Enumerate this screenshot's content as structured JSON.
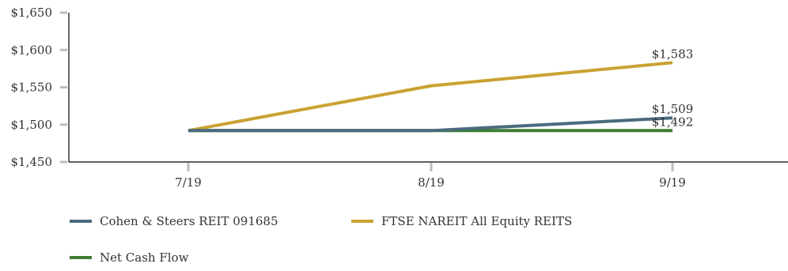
{
  "chart_data": {
    "type": "line",
    "categories": [
      "7/19",
      "8/19",
      "9/19"
    ],
    "ylim": [
      1450,
      1650
    ],
    "yticks": [
      1450,
      1500,
      1550,
      1600,
      1650
    ],
    "ytick_labels": [
      "$1,450",
      "$1,500",
      "$1,550",
      "$1,600",
      "$1,650"
    ],
    "grid": false,
    "legend_position": "bottom-left",
    "series": [
      {
        "name": "Cohen & Steers REIT 091685",
        "color": "#4a6b7e",
        "values": [
          1492,
          1492,
          1509
        ],
        "end_label": "$1,509"
      },
      {
        "name": "FTSE NAREIT All Equity REITS",
        "color": "#c9a233",
        "values": [
          1492,
          1552,
          1583
        ],
        "end_label": "$1,583"
      },
      {
        "name": "Net Cash Flow",
        "color": "#3e7d32",
        "values": [
          1492,
          1492,
          1492
        ],
        "end_label": "$1,492"
      }
    ]
  }
}
